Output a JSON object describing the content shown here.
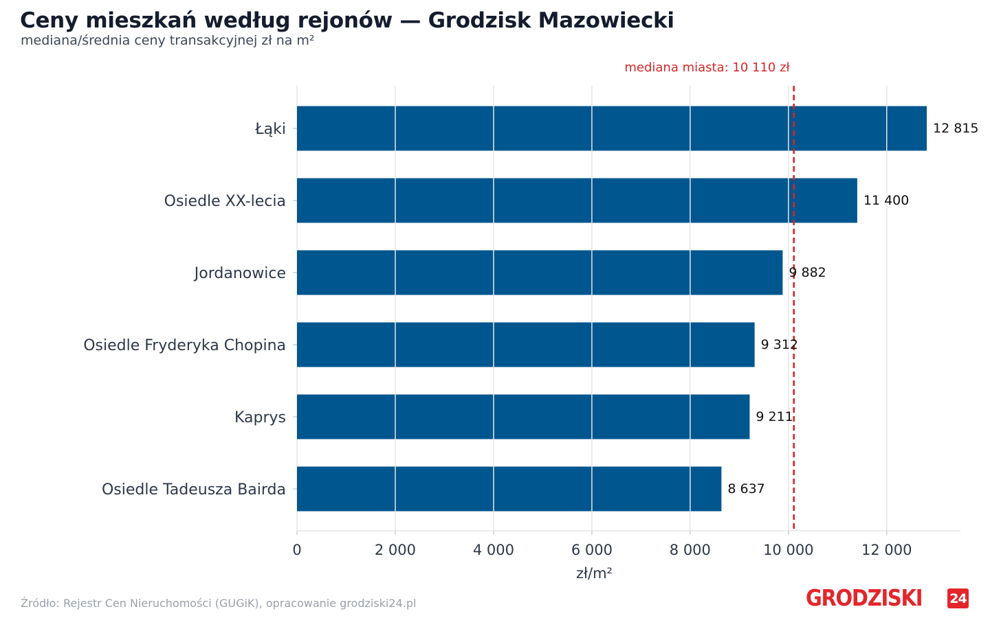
{
  "header": {
    "title": "Ceny mieszkań według rejonów — Grodzisk Mazowiecki",
    "subtitle": "mediana/średnia ceny transakcyjnej zł na m²"
  },
  "footer": {
    "source": "Źródło: Rejestr Cen Nieruchomości (GUGiK), opracowanie grodziski24.pl",
    "logo_text": "GRODZISKI",
    "logo_badge": "24"
  },
  "colors": {
    "bar": "#00568f",
    "median_line": "#d62728",
    "grid": "#e6e6e6",
    "label": "#2e3848",
    "value_label": "#111111"
  },
  "chart_data": {
    "type": "bar",
    "orientation": "horizontal",
    "categories": [
      "Łąki",
      "Osiedle XX-lecia",
      "Jordanowice",
      "Osiedle Fryderyka Chopina",
      "Kaprys",
      "Osiedle Tadeusza Bairda"
    ],
    "values": [
      12815,
      11400,
      9882,
      9312,
      9211,
      8637
    ],
    "value_labels": [
      "12 815",
      "11 400",
      "9 882",
      "9 312",
      "9 211",
      "8 637"
    ],
    "xlabel": "zł/m²",
    "xlim": [
      0,
      13500
    ],
    "xticks": [
      0,
      2000,
      4000,
      6000,
      8000,
      10000,
      12000
    ],
    "xtick_labels": [
      "0",
      "2 000",
      "4 000",
      "6 000",
      "8 000",
      "10 000",
      "12 000"
    ],
    "grid": true,
    "reference_line": {
      "value": 10110,
      "label": "mediana miasta: 10 110 zł"
    }
  }
}
